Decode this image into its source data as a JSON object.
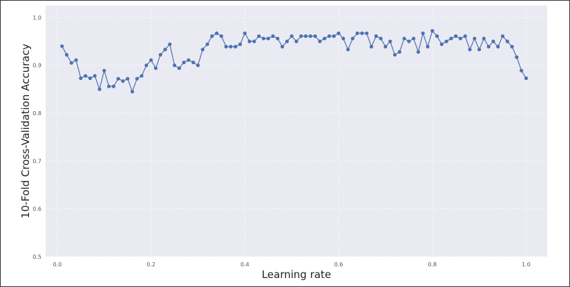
{
  "chart_data": {
    "type": "line",
    "xlabel": "Learning rate",
    "ylabel": "10-Fold Cross-Validation Accuracy",
    "xlim": [
      -0.025,
      1.045
    ],
    "ylim": [
      0.5,
      1.025
    ],
    "xticks": [
      "0.0",
      "0.2",
      "0.4",
      "0.6",
      "0.8",
      "1.0"
    ],
    "yticks": [
      "0.5",
      "0.6",
      "0.7",
      "0.8",
      "0.9",
      "1.0"
    ],
    "grid": true,
    "series": [
      {
        "x": [
          0.01,
          0.02,
          0.03,
          0.04,
          0.05,
          0.06,
          0.07,
          0.08,
          0.09,
          0.1,
          0.11,
          0.12,
          0.13,
          0.14,
          0.15,
          0.16,
          0.17,
          0.18,
          0.19,
          0.2,
          0.21,
          0.22,
          0.23,
          0.24,
          0.25,
          0.26,
          0.27,
          0.28,
          0.29,
          0.3,
          0.31,
          0.32,
          0.33,
          0.34,
          0.35,
          0.36,
          0.37,
          0.38,
          0.39,
          0.4,
          0.41,
          0.42,
          0.43,
          0.44,
          0.45,
          0.46,
          0.47,
          0.48,
          0.49,
          0.5,
          0.51,
          0.52,
          0.53,
          0.54,
          0.55,
          0.56,
          0.57,
          0.58,
          0.59,
          0.6,
          0.61,
          0.62,
          0.63,
          0.64,
          0.65,
          0.66,
          0.67,
          0.68,
          0.69,
          0.7,
          0.71,
          0.72,
          0.73,
          0.74,
          0.75,
          0.76,
          0.77,
          0.78,
          0.79,
          0.8,
          0.81,
          0.82,
          0.83,
          0.84,
          0.85,
          0.86,
          0.87,
          0.88,
          0.89,
          0.9,
          0.91,
          0.92,
          0.93,
          0.94,
          0.95,
          0.96,
          0.97,
          0.98,
          0.99,
          1.0
        ],
        "values": [
          0.94,
          0.922,
          0.905,
          0.911,
          0.873,
          0.878,
          0.873,
          0.878,
          0.85,
          0.889,
          0.856,
          0.856,
          0.872,
          0.867,
          0.872,
          0.845,
          0.872,
          0.878,
          0.9,
          0.911,
          0.894,
          0.922,
          0.933,
          0.944,
          0.9,
          0.894,
          0.906,
          0.911,
          0.906,
          0.9,
          0.933,
          0.944,
          0.961,
          0.967,
          0.961,
          0.939,
          0.939,
          0.939,
          0.944,
          0.967,
          0.95,
          0.95,
          0.961,
          0.956,
          0.956,
          0.961,
          0.956,
          0.939,
          0.95,
          0.961,
          0.95,
          0.961,
          0.961,
          0.961,
          0.961,
          0.95,
          0.956,
          0.961,
          0.961,
          0.967,
          0.956,
          0.933,
          0.956,
          0.967,
          0.967,
          0.967,
          0.939,
          0.961,
          0.956,
          0.939,
          0.95,
          0.922,
          0.928,
          0.956,
          0.95,
          0.956,
          0.928,
          0.967,
          0.939,
          0.972,
          0.961,
          0.944,
          0.95,
          0.956,
          0.961,
          0.956,
          0.961,
          0.933,
          0.956,
          0.933,
          0.956,
          0.939,
          0.95,
          0.939,
          0.961,
          0.95,
          0.939,
          0.917,
          0.889,
          0.873
        ],
        "color": "#4c72b0"
      }
    ],
    "plot_background": "#eaeaf2",
    "grid_color": "#ffffff"
  }
}
